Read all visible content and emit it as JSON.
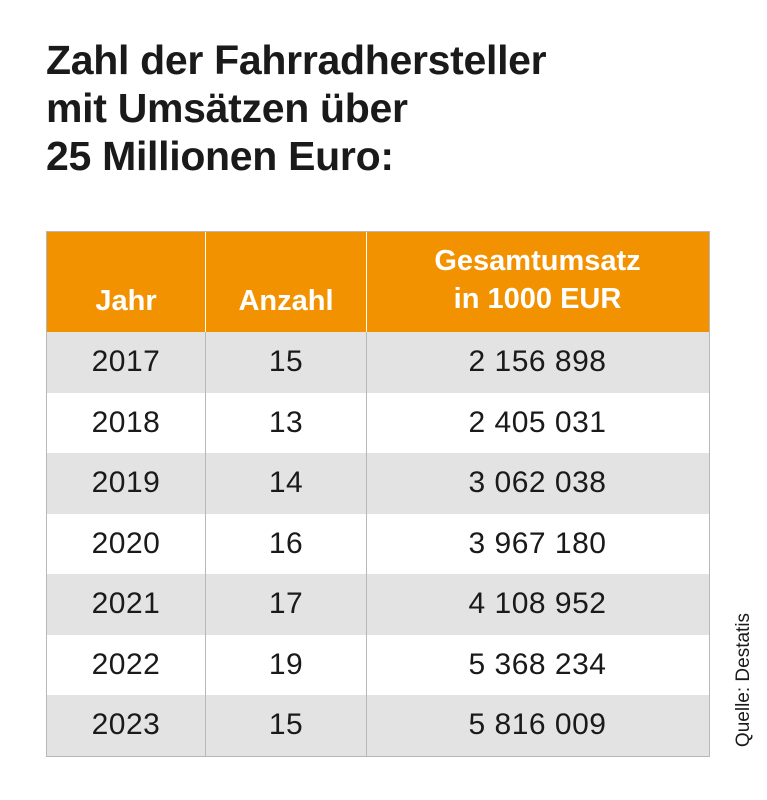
{
  "title_lines": [
    "Zahl der Fahrradhersteller",
    "mit Umsätzen über",
    "25 Millionen Euro:"
  ],
  "colors": {
    "header_bg": "#f39200",
    "stripe": "#e3e3e3",
    "text": "#1a1a1a"
  },
  "chart_data": {
    "type": "table",
    "title": "Zahl der Fahrradhersteller mit Umsätzen über 25 Millionen Euro:",
    "columns": [
      "Jahr",
      "Anzahl",
      "Gesamtumsatz in 1000 EUR"
    ],
    "header": {
      "col1": "Jahr",
      "col2": "Anzahl",
      "col3_line1": "Gesamtumsatz",
      "col3_line2": "in 1000 EUR"
    },
    "rows": [
      {
        "jahr": "2017",
        "anzahl": "15",
        "umsatz": "2 156 898"
      },
      {
        "jahr": "2018",
        "anzahl": "13",
        "umsatz": "2 405 031"
      },
      {
        "jahr": "2019",
        "anzahl": "14",
        "umsatz": "3 062 038"
      },
      {
        "jahr": "2020",
        "anzahl": "16",
        "umsatz": "3 967 180"
      },
      {
        "jahr": "2021",
        "anzahl": "17",
        "umsatz": "4 108 952"
      },
      {
        "jahr": "2022",
        "anzahl": "19",
        "umsatz": "5 368 234"
      },
      {
        "jahr": "2023",
        "anzahl": "15",
        "umsatz": "5 816 009"
      }
    ]
  },
  "source": "Quelle: Destatis"
}
